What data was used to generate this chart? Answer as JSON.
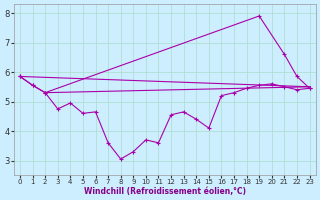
{
  "xlabel": "Windchill (Refroidissement éolien,°C)",
  "background_color": "#cceeff",
  "grid_color": "#aaddcc",
  "line_color": "#aa00aa",
  "xlim": [
    -0.5,
    23.5
  ],
  "ylim": [
    2.5,
    8.3
  ],
  "xticks": [
    0,
    1,
    2,
    3,
    4,
    5,
    6,
    7,
    8,
    9,
    10,
    11,
    12,
    13,
    14,
    15,
    16,
    17,
    18,
    19,
    20,
    21,
    22,
    23
  ],
  "yticks": [
    3,
    4,
    5,
    6,
    7,
    8
  ],
  "series": [
    {
      "x": [
        0,
        1,
        2,
        3,
        4,
        5,
        6,
        7,
        8,
        9,
        10,
        11,
        12,
        13,
        14,
        15,
        16,
        17,
        18,
        19,
        20,
        21,
        22,
        23
      ],
      "y": [
        5.85,
        5.55,
        5.3,
        4.75,
        4.95,
        4.6,
        4.65,
        3.6,
        3.05,
        3.3,
        3.7,
        3.6,
        4.55,
        4.65,
        4.4,
        4.1,
        5.2,
        5.3,
        5.45,
        5.55,
        5.6,
        5.5,
        5.4,
        5.45
      ],
      "marker": true,
      "lineonly": false
    },
    {
      "x": [
        0,
        23
      ],
      "y": [
        5.85,
        5.5
      ],
      "marker": false,
      "lineonly": true
    },
    {
      "x": [
        2,
        23
      ],
      "y": [
        5.3,
        5.5
      ],
      "marker": false,
      "lineonly": true
    },
    {
      "x": [
        0,
        1,
        2,
        19,
        21,
        22,
        23
      ],
      "y": [
        5.85,
        5.55,
        5.3,
        7.9,
        6.6,
        5.85,
        5.45
      ],
      "marker": true,
      "lineonly": false
    }
  ]
}
